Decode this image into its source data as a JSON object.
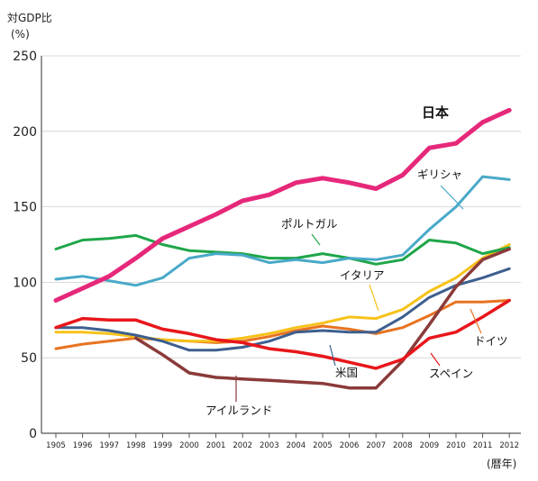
{
  "chart_data": {
    "type": "line",
    "ylabel_line1": "対GDP比",
    "ylabel_line2": "(%)",
    "xlabel": "(暦年)",
    "ylim": [
      0,
      250
    ],
    "yticks": [
      0,
      50,
      100,
      150,
      200,
      250
    ],
    "grid": true,
    "categories": [
      "1905",
      "1996",
      "1997",
      "1998",
      "1999",
      "2000",
      "2001",
      "2002",
      "2003",
      "2004",
      "2005",
      "2006",
      "2007",
      "2008",
      "2009",
      "2010",
      "2011",
      "2012"
    ],
    "series": [
      {
        "name": "日本",
        "color": "#e6287a",
        "width": 5,
        "values": [
          88,
          96,
          104,
          116,
          129,
          137,
          145,
          154,
          158,
          166,
          169,
          166,
          162,
          171,
          189,
          192,
          206,
          214
        ]
      },
      {
        "name": "ギリシャ",
        "color": "#49a9c9",
        "width": 3,
        "values": [
          102,
          104,
          101,
          98,
          103,
          116,
          119,
          118,
          113,
          115,
          113,
          116,
          115,
          118,
          135,
          150,
          170,
          168
        ]
      },
      {
        "name": "ポルトガル",
        "color": "#1fa64a",
        "width": 3,
        "values": [
          122,
          128,
          129,
          131,
          125,
          121,
          120,
          119,
          116,
          116,
          119,
          116,
          112,
          115,
          128,
          126,
          119,
          123
        ]
      },
      {
        "name": "イタリア",
        "color": "#f7c21a",
        "width": 3,
        "values": [
          67,
          67,
          66,
          64,
          62,
          61,
          61,
          63,
          66,
          70,
          73,
          77,
          76,
          82,
          94,
          103,
          116,
          125
        ]
      },
      {
        "name": "ドイツ",
        "color": "#e87321",
        "width": 3,
        "values": [
          56,
          59,
          61,
          63,
          62,
          61,
          60,
          61,
          64,
          68,
          71,
          69,
          66,
          70,
          78,
          87,
          87,
          88
        ]
      },
      {
        "name": "米国",
        "color": "#3d5f8e",
        "width": 3,
        "values": [
          70,
          70,
          68,
          65,
          61,
          55,
          55,
          57,
          61,
          67,
          68,
          67,
          67,
          77,
          90,
          98,
          103,
          109
        ]
      },
      {
        "name": "スペイン",
        "color": "#e8161b",
        "width": 3.5,
        "values": [
          70,
          76,
          75,
          75,
          69,
          66,
          62,
          60,
          56,
          54,
          51,
          47,
          43,
          49,
          63,
          67,
          77,
          88
        ]
      },
      {
        "name": "アイルランド",
        "color": "#8b3a3a",
        "width": 3.5,
        "values": [
          null,
          null,
          null,
          63,
          52,
          40,
          37,
          36,
          35,
          34,
          33,
          30,
          30,
          48,
          72,
          97,
          115,
          122
        ]
      }
    ],
    "labels": [
      {
        "series": "日本",
        "text": "日本",
        "big": true
      },
      {
        "series": "ギリシャ",
        "text": "ギリシャ"
      },
      {
        "series": "ポルトガル",
        "text": "ポルトガル"
      },
      {
        "series": "イタリア",
        "text": "イタリア"
      },
      {
        "series": "ドイツ",
        "text": "ドイツ"
      },
      {
        "series": "米国",
        "text": "米国"
      },
      {
        "series": "スペイン",
        "text": "スペイン"
      },
      {
        "series": "アイルランド",
        "text": "アイルランド"
      }
    ]
  }
}
